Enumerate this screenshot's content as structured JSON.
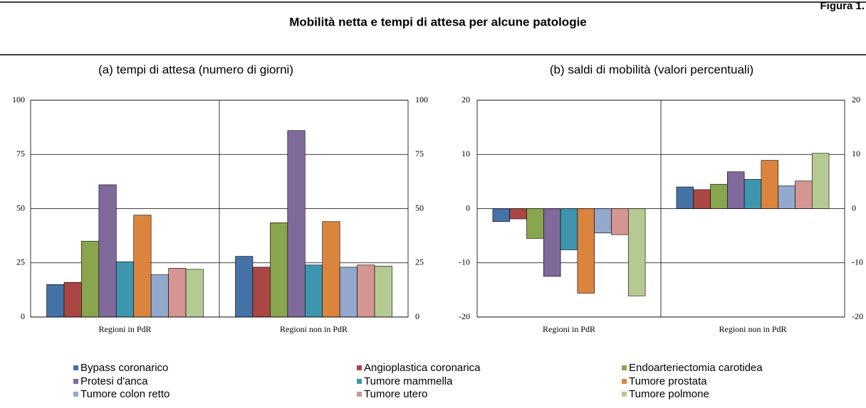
{
  "figure_label": "Figura 1.",
  "title": "Mobilità netta e tempi di attesa per alcune patologie",
  "chart_data": [
    {
      "type": "bar",
      "subtitle": "(a) tempi di attesa (numero di giorni)",
      "categories": [
        "Regioni in PdR",
        "Regioni non in PdR"
      ],
      "ylim": [
        0,
        100
      ],
      "yticks": [
        0,
        25,
        50,
        75,
        100
      ],
      "grid": true,
      "legend": "bottom",
      "series": [
        {
          "name": "Bypass coronarico",
          "color": "#4572a7",
          "values": [
            15,
            28
          ]
        },
        {
          "name": "Angioplastica coronarica",
          "color": "#aa4643",
          "values": [
            16,
            23
          ]
        },
        {
          "name": "Endoarteriectomia carotidea",
          "color": "#89a54e",
          "values": [
            35,
            43.5
          ]
        },
        {
          "name": "Protesi d'anca",
          "color": "#80699b",
          "values": [
            61,
            86
          ]
        },
        {
          "name": "Tumore mammella",
          "color": "#3d96ae",
          "values": [
            25.5,
            24
          ]
        },
        {
          "name": "Tumore prostata",
          "color": "#db843d",
          "values": [
            47,
            44
          ]
        },
        {
          "name": "Tumore colon retto",
          "color": "#92a8cd",
          "values": [
            19.5,
            23
          ]
        },
        {
          "name": "Tumore utero",
          "color": "#d59593",
          "values": [
            22.5,
            24
          ]
        },
        {
          "name": "Tumore polmone",
          "color": "#b5ca92",
          "values": [
            22,
            23.5
          ]
        }
      ]
    },
    {
      "type": "bar",
      "subtitle": "(b) saldi di mobilità (valori percentuali)",
      "categories": [
        "Regioni in PdR",
        "Regioni non in PdR"
      ],
      "ylim": [
        -20,
        20
      ],
      "yticks": [
        -20,
        -10,
        0,
        10,
        20
      ],
      "grid": true,
      "series": [
        {
          "values": [
            -2.4,
            4
          ]
        },
        {
          "values": [
            -1.9,
            3.5
          ]
        },
        {
          "values": [
            -5.5,
            4.5
          ]
        },
        {
          "values": [
            -12.5,
            6.8
          ]
        },
        {
          "values": [
            -7.6,
            5.4
          ]
        },
        {
          "values": [
            -15.6,
            8.9
          ]
        },
        {
          "values": [
            -4.5,
            4.2
          ]
        },
        {
          "values": [
            -4.8,
            5.1
          ]
        },
        {
          "values": [
            -16.1,
            10.2
          ]
        }
      ]
    }
  ]
}
